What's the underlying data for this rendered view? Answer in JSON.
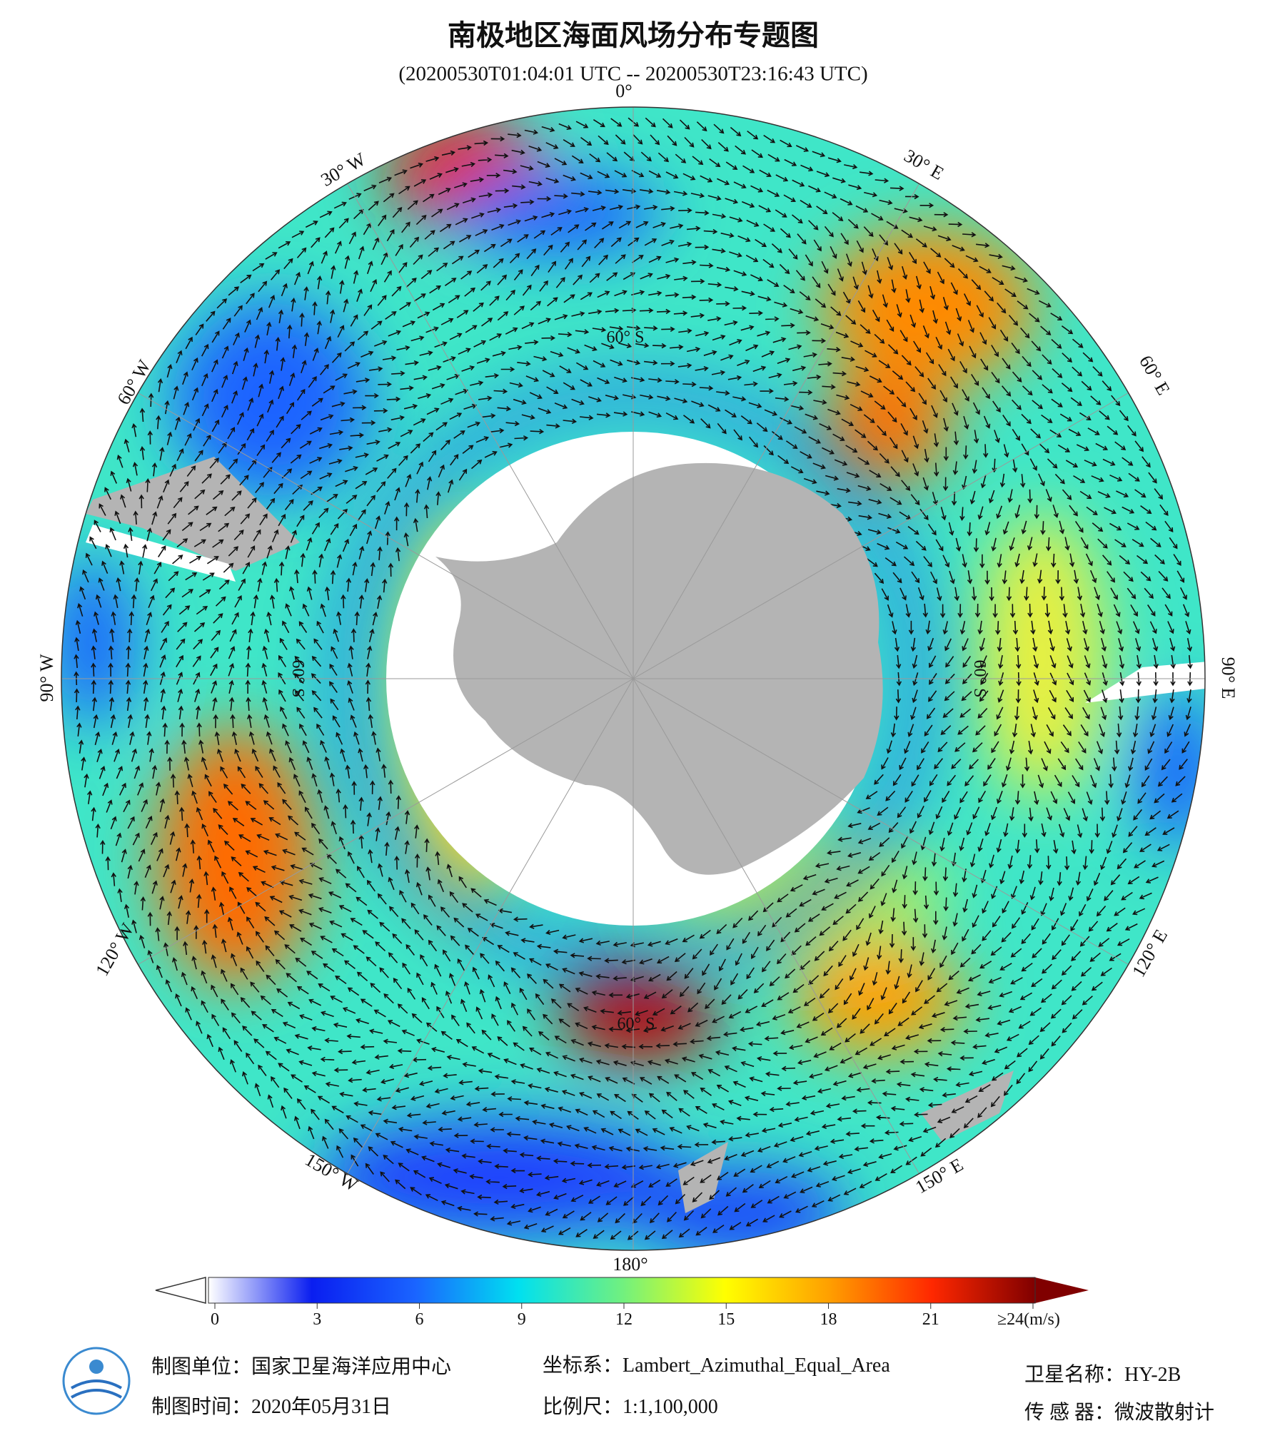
{
  "header": {
    "title": "南极地区海面风场分布专题图",
    "subtitle": "(20200530T01:04:01 UTC -- 20200530T23:16:43 UTC)"
  },
  "map": {
    "longitude_labels": [
      "0°",
      "30° E",
      "60° E",
      "90° E",
      "120° E",
      "150° E",
      "180°",
      "150° W",
      "120° W",
      "90° W",
      "60° W",
      "30° W"
    ],
    "latitude_labels": [
      "60° S",
      "60° S",
      "60° S",
      "60° S"
    ]
  },
  "colorbar": {
    "range": [
      0,
      24
    ],
    "colors": [
      "#ffffff",
      "#0a1ef0",
      "#1a64ff",
      "#00e0f0",
      "#70f080",
      "#ffff00",
      "#ffa000",
      "#ff2800",
      "#800000"
    ],
    "ticks": [
      0,
      3,
      6,
      9,
      12,
      15,
      18,
      21,
      {
        "value": 24,
        "label": "≥24(m/s)"
      }
    ]
  },
  "footer": {
    "producer": "制图单位：国家卫星海洋应用中心",
    "date": "制图时间：2020年05月31日",
    "projection": "坐标系：Lambert_Azimuthal_Equal_Area",
    "scale": "比例尺：1:1,100,000",
    "satellite": "卫星名称：HY-2B",
    "sensor": "传 感 器：微波散射计"
  }
}
